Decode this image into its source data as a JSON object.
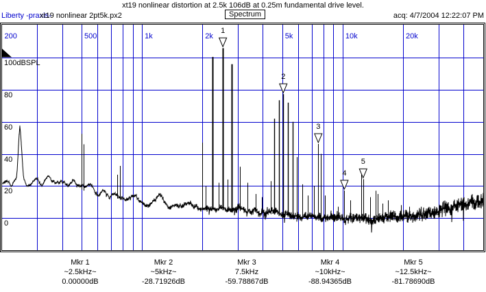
{
  "header": {
    "title": "xt19 nonlinear distortion at 2.5k 106dB at 0.25m fundamental drive level.",
    "brand": "Liberty -praxis-",
    "file": "xt19 nonlinear 2pt5k.px2",
    "mode_button": "Spectrum",
    "acquired": "acq: 4/7/2004 12:22:07 PM"
  },
  "colors": {
    "grid_blue": "#0000cd",
    "axis_label_blue": "#0000cd",
    "trace_black": "#000000",
    "background": "#ffffff"
  },
  "chart_data": {
    "type": "line",
    "title": "Spectrum",
    "x_axis": {
      "scale": "log",
      "unit": "Hz",
      "min": 200,
      "max": 50400,
      "ticks": [
        {
          "label": "200",
          "f": 200
        },
        {
          "label": "500",
          "f": 500
        },
        {
          "label": "1k",
          "f": 1000
        },
        {
          "label": "2k",
          "f": 2000
        },
        {
          "label": "5k",
          "f": 5000
        },
        {
          "label": "10k",
          "f": 10000
        },
        {
          "label": "20k",
          "f": 20000
        }
      ],
      "gridlines": [
        300,
        400,
        500,
        600,
        700,
        800,
        900,
        1000,
        2000,
        3000,
        4000,
        5000,
        6000,
        7000,
        8000,
        9000,
        10000,
        20000,
        30000,
        40000
      ]
    },
    "y_axis": {
      "unit": "dBSPL",
      "min": -20,
      "max": 120,
      "grid": true,
      "ticks": [
        {
          "label": "100dBSPL",
          "dB": 100
        },
        {
          "label": "80",
          "dB": 80
        },
        {
          "label": "60",
          "dB": 60
        },
        {
          "label": "40",
          "dB": 40
        },
        {
          "label": "20",
          "dB": 20
        },
        {
          "label": "0",
          "dB": 0
        }
      ]
    },
    "reference_level_dBSPL": 106,
    "markers": [
      {
        "n": "1",
        "name": "Mkr 1",
        "freq": "~2.5kHz~",
        "level": "0.00000dB",
        "f": 2530,
        "dB": 106.0
      },
      {
        "n": "2",
        "name": "Mkr 2",
        "freq": "~5kHz~",
        "level": "-28.71926dB",
        "f": 5060,
        "dB": 77.3
      },
      {
        "n": "3",
        "name": "Mkr 3",
        "freq": "7.5kHz",
        "level": "-59.78867dB",
        "f": 7560,
        "dB": 46.2
      },
      {
        "n": "4",
        "name": "Mkr 4",
        "freq": "~10kHz~",
        "level": "-88.94365dB",
        "f": 10200,
        "dB": 17.1
      },
      {
        "n": "5",
        "name": "Mkr 5",
        "freq": "~12.5kHz~",
        "level": "-81.78690dB",
        "f": 12650,
        "dB": 24.2
      }
    ],
    "peaks_f_dB": [
      [
        500,
        52.5
      ],
      [
        513,
        46
      ],
      [
        750,
        27
      ],
      [
        776,
        32.5
      ],
      [
        2000,
        47
      ],
      [
        2080,
        20
      ],
      [
        2250,
        100.5
      ],
      [
        2420,
        22
      ],
      [
        2530,
        106
      ],
      [
        2660,
        24
      ],
      [
        2800,
        96
      ],
      [
        3080,
        32
      ],
      [
        3350,
        22
      ],
      [
        3700,
        15
      ],
      [
        3950,
        13
      ],
      [
        4400,
        23
      ],
      [
        4560,
        62
      ],
      [
        4800,
        73.5
      ],
      [
        5060,
        77.3
      ],
      [
        5350,
        72
      ],
      [
        5650,
        60
      ],
      [
        5900,
        38
      ],
      [
        6300,
        21
      ],
      [
        6700,
        14
      ],
      [
        7210,
        20
      ],
      [
        7560,
        46.2
      ],
      [
        7810,
        40
      ],
      [
        8150,
        14
      ],
      [
        9500,
        7
      ],
      [
        10200,
        17.1
      ],
      [
        10900,
        11
      ],
      [
        12350,
        28.5
      ],
      [
        12650,
        24.2
      ],
      [
        13700,
        13
      ],
      [
        14600,
        17
      ],
      [
        14950,
        15
      ],
      [
        15800,
        9
      ],
      [
        16800,
        11
      ],
      [
        19600,
        8
      ],
      [
        21500,
        7
      ],
      [
        24500,
        7
      ]
    ],
    "noise_floor_f_dB": [
      [
        200,
        21
      ],
      [
        213,
        24
      ],
      [
        226,
        21
      ],
      [
        238,
        26
      ],
      [
        246,
        59
      ],
      [
        251,
        46
      ],
      [
        257,
        25
      ],
      [
        268,
        20
      ],
      [
        283,
        21
      ],
      [
        300,
        25
      ],
      [
        318,
        21
      ],
      [
        342,
        24
      ],
      [
        372,
        21
      ],
      [
        400,
        23
      ],
      [
        428,
        20
      ],
      [
        452,
        23
      ],
      [
        478,
        20
      ],
      [
        500,
        19
      ],
      [
        520,
        18
      ],
      [
        556,
        19
      ],
      [
        600,
        15
      ],
      [
        640,
        17
      ],
      [
        690,
        13
      ],
      [
        730,
        14
      ],
      [
        800,
        12
      ],
      [
        900,
        13
      ],
      [
        1000,
        10
      ],
      [
        1100,
        9
      ],
      [
        1230,
        14
      ],
      [
        1320,
        8
      ],
      [
        1500,
        7
      ],
      [
        1700,
        8
      ],
      [
        2000,
        7
      ],
      [
        2300,
        6.5
      ],
      [
        2700,
        6
      ],
      [
        3200,
        5.5
      ],
      [
        3800,
        4.5
      ],
      [
        4500,
        3.5
      ],
      [
        5200,
        3
      ],
      [
        6000,
        2
      ],
      [
        7000,
        1.2
      ],
      [
        8000,
        0.6
      ],
      [
        9000,
        0.2
      ],
      [
        10500,
        -0.3
      ],
      [
        12000,
        -0.4
      ],
      [
        14000,
        -0.8
      ],
      [
        16000,
        -0.4
      ],
      [
        18000,
        0
      ],
      [
        20000,
        0.6
      ],
      [
        23000,
        1.6
      ],
      [
        26000,
        3
      ],
      [
        30000,
        4.6
      ],
      [
        35000,
        6.6
      ],
      [
        40000,
        8.6
      ],
      [
        46000,
        10.2
      ],
      [
        50400,
        11
      ]
    ],
    "overload_flag": true
  }
}
